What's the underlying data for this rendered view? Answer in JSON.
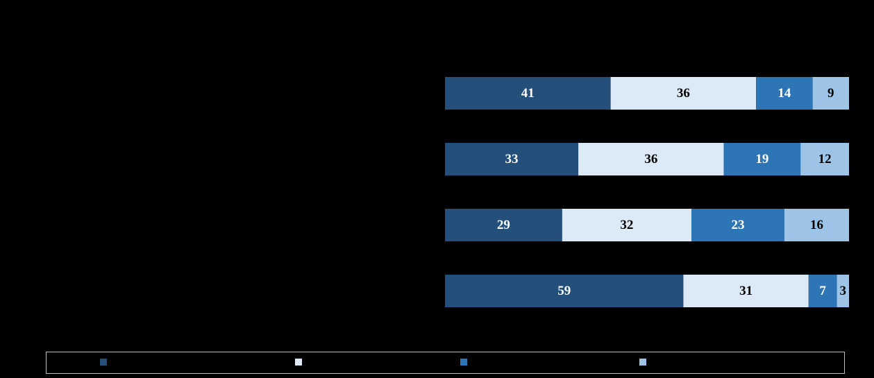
{
  "chart_data": {
    "type": "stacked-bar-horizontal",
    "categories": [
      null,
      null,
      null,
      null
    ],
    "xlim": [
      0,
      100
    ],
    "series": [
      {
        "color": "#234f7a",
        "values": [
          41,
          33,
          29,
          59
        ]
      },
      {
        "color": "#dce9f6",
        "values": [
          36,
          36,
          32,
          31
        ]
      },
      {
        "color": "#2e75b6",
        "values": [
          14,
          19,
          23,
          7
        ]
      },
      {
        "color": "#9dc3e6",
        "values": [
          9,
          12,
          16,
          3
        ]
      }
    ],
    "legend": "bottom"
  }
}
